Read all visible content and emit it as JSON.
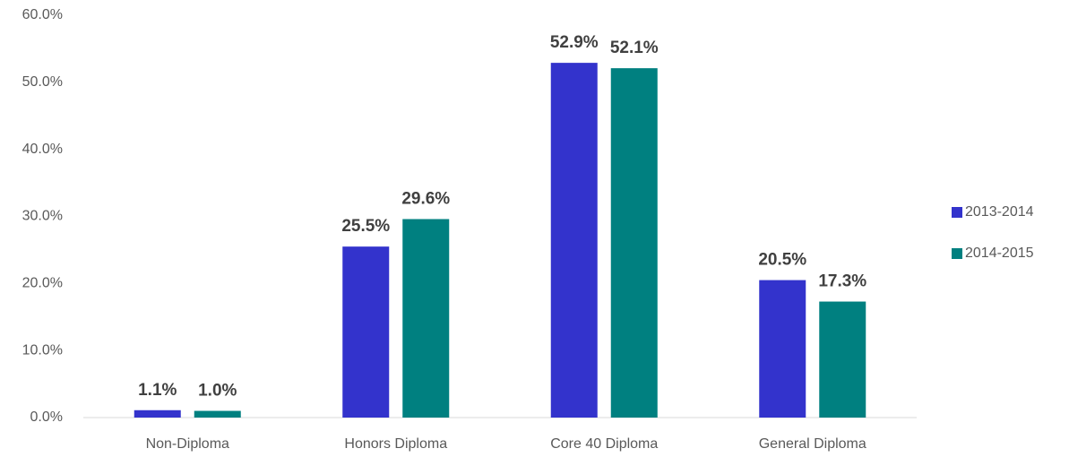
{
  "chart_data": {
    "type": "bar",
    "categories": [
      "Non-Diploma",
      "Honors Diploma",
      "Core 40 Diploma",
      "General Diploma"
    ],
    "series": [
      {
        "name": "2013-2014",
        "color": "#3333cc",
        "values": [
          1.1,
          25.5,
          52.9,
          20.5
        ],
        "value_labels": [
          "1.1%",
          "25.5%",
          "52.9%",
          "20.5%"
        ]
      },
      {
        "name": "2014-2015",
        "color": "#008080",
        "values": [
          1.0,
          29.6,
          52.1,
          17.3
        ],
        "value_labels": [
          "1.0%",
          "29.6%",
          "52.1%",
          "17.3%"
        ]
      }
    ],
    "ylim": [
      0,
      60
    ],
    "yticks": [
      {
        "value": 0,
        "label": "0.0%"
      },
      {
        "value": 10,
        "label": "10.0%"
      },
      {
        "value": 20,
        "label": "20.0%"
      },
      {
        "value": 30,
        "label": "30.0%"
      },
      {
        "value": 40,
        "label": "40.0%"
      },
      {
        "value": 50,
        "label": "50.0%"
      },
      {
        "value": 60,
        "label": "60.0%"
      }
    ],
    "grid": false,
    "legend": "right"
  }
}
